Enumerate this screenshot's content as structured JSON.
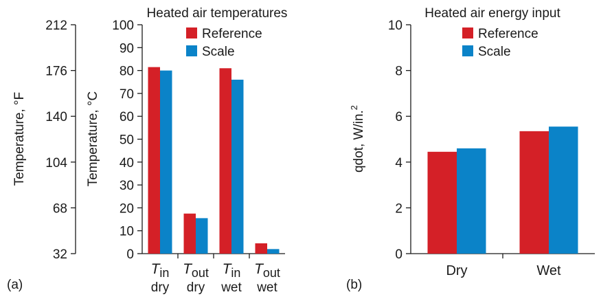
{
  "colors": {
    "reference": "#d42027",
    "scale": "#0b83c8",
    "axis": "#1a1a1a"
  },
  "chart_data": [
    {
      "panel_label": "(a)",
      "type": "bar",
      "title": "Heated air temperatures",
      "ylabel": "Temperature, °C",
      "ylim": [
        0,
        100
      ],
      "yticks": [
        "0",
        "10",
        "20",
        "30",
        "40",
        "50",
        "60",
        "70",
        "80",
        "90",
        "100"
      ],
      "secondary_axis": {
        "ylabel": "Temperature, °F",
        "ylim": [
          32,
          212
        ],
        "yticks": [
          "32",
          "68",
          "104",
          "140",
          "176",
          "212"
        ]
      },
      "categories": [
        {
          "sym": "T",
          "sub": "in",
          "cond": "dry"
        },
        {
          "sym": "T",
          "sub": "out",
          "cond": "dry"
        },
        {
          "sym": "T",
          "sub": "in",
          "cond": "wet"
        },
        {
          "sym": "T",
          "sub": "out",
          "cond": "wet"
        }
      ],
      "series": [
        {
          "name": "Reference",
          "values": [
            81.5,
            17.5,
            81,
            4.5
          ]
        },
        {
          "name": "Scale",
          "values": [
            80,
            15.5,
            76,
            2
          ]
        }
      ],
      "legend_position": "top-right",
      "grid": false
    },
    {
      "panel_label": "(b)",
      "type": "bar",
      "title": "Heated air energy input",
      "ylabel": "qdot, W/in.",
      "ylabel_sup": "2",
      "ylim": [
        0,
        10
      ],
      "yticks": [
        "0",
        "2",
        "4",
        "6",
        "8",
        "10"
      ],
      "categories": [
        "Dry",
        "Wet"
      ],
      "series": [
        {
          "name": "Reference",
          "values": [
            4.45,
            5.35
          ]
        },
        {
          "name": "Scale",
          "values": [
            4.6,
            5.55
          ]
        }
      ],
      "legend_position": "top-center",
      "grid": false
    }
  ]
}
